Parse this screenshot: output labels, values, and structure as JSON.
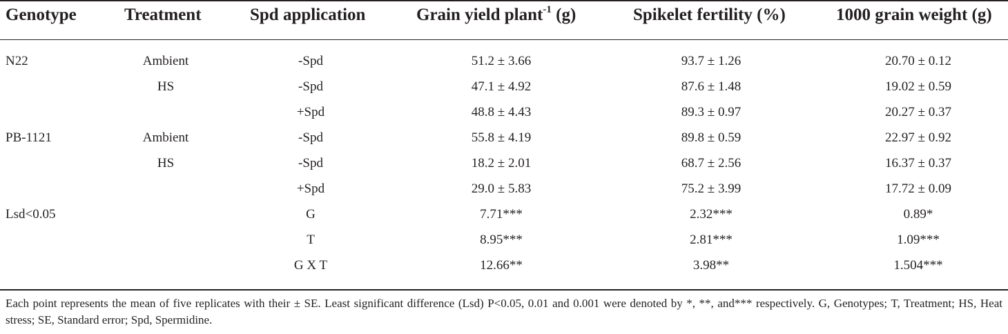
{
  "table": {
    "headers": {
      "genotype": "Genotype",
      "treatment": "Treatment",
      "spd_application": "Spd application",
      "grain_yield": "Grain yield plant",
      "grain_yield_sup": "-1",
      "grain_yield_unit": " (g)",
      "spikelet_fertility": "Spikelet fertility (%)",
      "grain_weight": "1000 grain weight (g)"
    },
    "rows": [
      {
        "genotype": "N22",
        "treatment": "Ambient",
        "spd": "-Spd",
        "yield": "51.2 ± 3.66",
        "fertility": "93.7 ± 1.26",
        "weight": "20.70 ± 0.12"
      },
      {
        "genotype": "",
        "treatment": "HS",
        "spd": "-Spd",
        "yield": "47.1 ± 4.92",
        "fertility": "87.6 ± 1.48",
        "weight": "19.02 ± 0.59"
      },
      {
        "genotype": "",
        "treatment": "",
        "spd": "+Spd",
        "yield": "48.8 ± 4.43",
        "fertility": "89.3 ± 0.97",
        "weight": "20.27 ± 0.37"
      },
      {
        "genotype": "PB-1121",
        "treatment": "Ambient",
        "spd": "-Spd",
        "yield": "55.8 ± 4.19",
        "fertility": "89.8 ± 0.59",
        "weight": "22.97 ± 0.92"
      },
      {
        "genotype": "",
        "treatment": "HS",
        "spd": "-Spd",
        "yield": "18.2 ± 2.01",
        "fertility": "68.7 ± 2.56",
        "weight": "16.37 ± 0.37"
      },
      {
        "genotype": "",
        "treatment": "",
        "spd": "+Spd",
        "yield": "29.0 ± 5.83",
        "fertility": "75.2 ± 3.99",
        "weight": "17.72 ± 0.09"
      },
      {
        "genotype": "Lsd<0.05",
        "treatment": "",
        "spd": "G",
        "yield": "7.71***",
        "fertility": "2.32***",
        "weight": "0.89*"
      },
      {
        "genotype": "",
        "treatment": "",
        "spd": "T",
        "yield": "8.95***",
        "fertility": "2.81***",
        "weight": "1.09***"
      },
      {
        "genotype": "",
        "treatment": "",
        "spd": "G X T",
        "yield": "12.66**",
        "fertility": "3.98**",
        "weight": "1.504***"
      }
    ],
    "footnote": "Each point represents the mean of five replicates with their ± SE. Least significant difference (Lsd) P<0.05, 0.01 and 0.001 were denoted by *, **, and*** respectively. G, Genotypes; T, Treatment; HS, Heat stress; SE, Standard error; Spd, Spermidine."
  }
}
